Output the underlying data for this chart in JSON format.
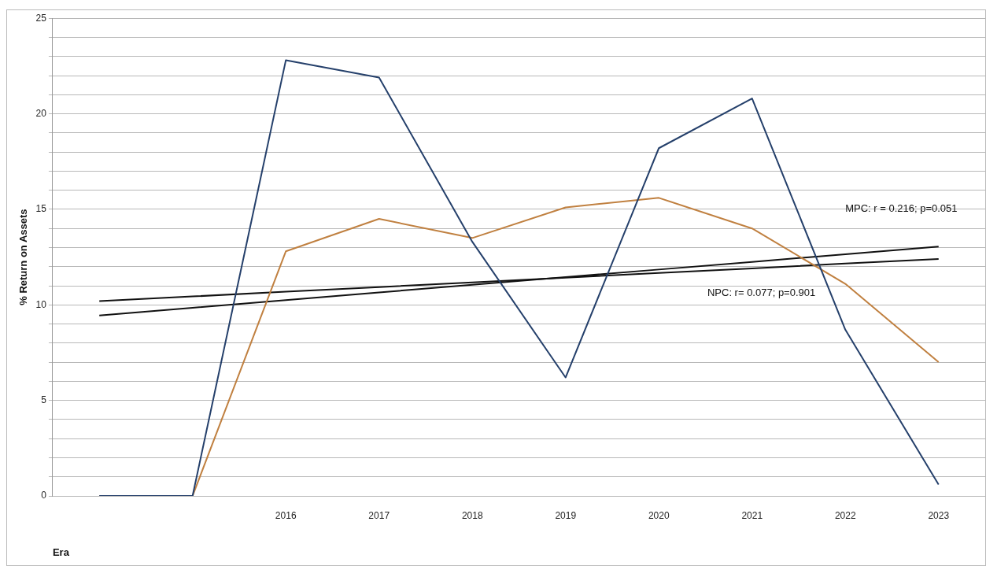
{
  "chart_data": {
    "type": "line",
    "ylabel": "% Return on Assets",
    "xlabel": "Era",
    "categories": [
      null,
      null,
      "2016",
      "2017",
      "2018",
      "2019",
      "2020",
      "2021",
      "2022",
      "2023"
    ],
    "series": [
      {
        "color": "#25406b",
        "values": [
          0,
          0,
          22.8,
          21.9,
          13.3,
          6.2,
          18.2,
          20.8,
          8.7,
          0.6
        ]
      },
      {
        "color": "#c08040",
        "values": [
          0,
          0,
          12.8,
          14.5,
          13.5,
          15.1,
          15.6,
          14.0,
          11.1,
          7.0
        ]
      },
      {
        "color": "#111111",
        "values": [
          10.2,
          10.44,
          10.69,
          10.93,
          11.18,
          11.42,
          11.67,
          11.91,
          12.16,
          12.4
        ]
      },
      {
        "color": "#111111",
        "values": [
          9.45,
          9.85,
          10.25,
          10.65,
          11.05,
          11.45,
          11.85,
          12.25,
          12.65,
          13.05
        ]
      }
    ],
    "ylim": [
      0,
      25
    ],
    "yticks": [
      0,
      {
        "value": 1,
        "label": null
      },
      {
        "value": 2,
        "label": null
      },
      {
        "value": 3,
        "label": null
      },
      {
        "value": 4,
        "label": null
      },
      5,
      {
        "value": 6,
        "label": null
      },
      {
        "value": 7,
        "label": null
      },
      {
        "value": 8,
        "label": null
      },
      {
        "value": 9,
        "label": null
      },
      10,
      {
        "value": 11,
        "label": null
      },
      {
        "value": 12,
        "label": null
      },
      {
        "value": 13,
        "label": null
      },
      {
        "value": 14,
        "label": null
      },
      15,
      {
        "value": 16,
        "label": null
      },
      {
        "value": 17,
        "label": null
      },
      {
        "value": 18,
        "label": null
      },
      {
        "value": 19,
        "label": null
      },
      20,
      {
        "value": 21,
        "label": null
      },
      {
        "value": 22,
        "label": null
      },
      {
        "value": 23,
        "label": null
      },
      {
        "value": 24,
        "label": null
      },
      25
    ],
    "grid": "y",
    "legend": false,
    "marker": "none",
    "line_style": "solid",
    "annotations": [
      "MPC: r = 0.216; p=0.051",
      "NPC: r= 0.077; p=0.901"
    ]
  }
}
